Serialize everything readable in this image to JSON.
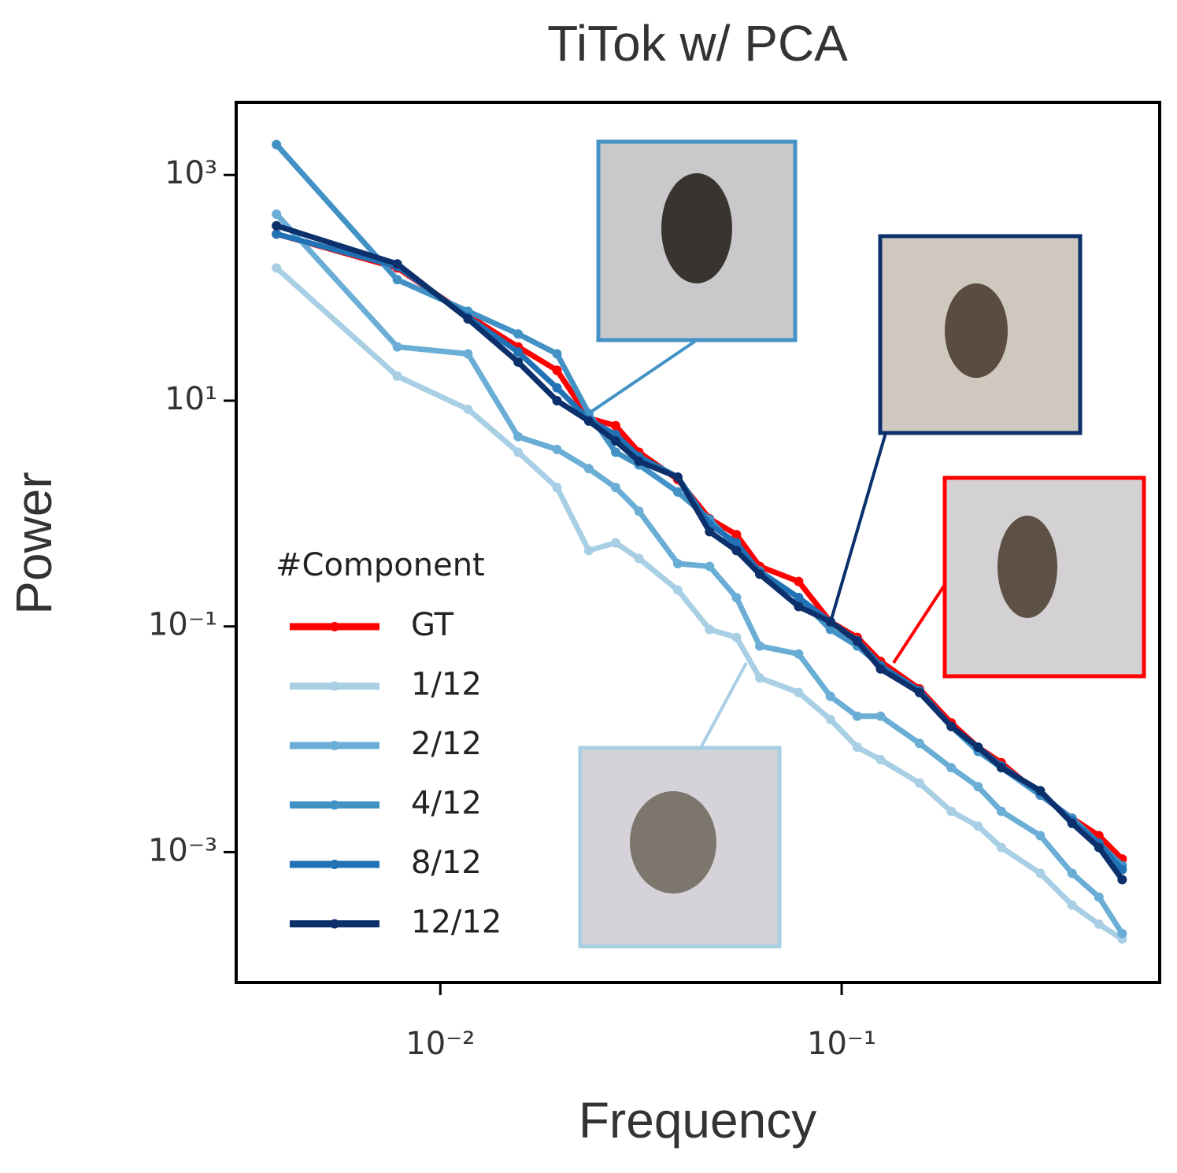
{
  "chart_data": {
    "type": "line",
    "title": "TiTok w/ PCA",
    "x_label": "Frequency",
    "y_label": "Power",
    "x_scale": "log",
    "y_scale": "log",
    "xlim": [
      0.0031,
      0.62
    ],
    "ylim": [
      7e-05,
      4400
    ],
    "xticks": [
      {
        "value": 0.01,
        "label": "10⁻²"
      },
      {
        "value": 0.1,
        "label": "10⁻¹"
      }
    ],
    "yticks": [
      {
        "value": 1000,
        "label": "10³"
      },
      {
        "value": 10,
        "label": "10¹"
      },
      {
        "value": 0.1,
        "label": "10⁻¹"
      },
      {
        "value": 0.001,
        "label": "10⁻³"
      }
    ],
    "legend": "lower left",
    "legend_title": "#Component",
    "x": [
      0.00390625,
      0.0078125,
      0.01171875,
      0.015625,
      0.01953125,
      0.0234375,
      0.02734375,
      0.03125,
      0.0390625,
      0.046875,
      0.0546875,
      0.0625,
      0.078125,
      0.09375,
      0.109375,
      0.125,
      0.15625,
      0.1875,
      0.21875,
      0.25,
      0.3125,
      0.375,
      0.4375,
      0.5
    ],
    "series": [
      {
        "name": "GT",
        "color": "#ff0000",
        "values": [
          300,
          150,
          57,
          30,
          18.6,
          7,
          6,
          3.5,
          2.0,
          0.9,
          0.65,
          0.34,
          0.25,
          0.11,
          0.08,
          0.049,
          0.028,
          0.014,
          0.0085,
          0.0062,
          0.0032,
          0.002,
          0.0014,
          0.00087
        ]
      },
      {
        "name": "1/12",
        "color": "#a9cfe5",
        "values": [
          150,
          16.5,
          8.4,
          3.5,
          1.7,
          0.47,
          0.55,
          0.4,
          0.21,
          0.094,
          0.08,
          0.035,
          0.026,
          0.015,
          0.0085,
          0.0066,
          0.0041,
          0.0023,
          0.0017,
          0.0011,
          0.00065,
          0.00034,
          0.00023,
          0.00017
        ]
      },
      {
        "name": "2/12",
        "color": "#6aaed6",
        "values": [
          450,
          30,
          26,
          4.8,
          3.7,
          2.5,
          1.7,
          1.05,
          0.36,
          0.34,
          0.18,
          0.067,
          0.057,
          0.024,
          0.016,
          0.016,
          0.0092,
          0.0056,
          0.0038,
          0.0023,
          0.0014,
          0.00065,
          0.0004,
          0.00019
        ]
      },
      {
        "name": "4/12",
        "color": "#4292c6",
        "values": [
          1860,
          118,
          62,
          39,
          26,
          7.7,
          3.5,
          2.7,
          1.55,
          0.89,
          0.5,
          0.31,
          0.18,
          0.094,
          0.067,
          0.045,
          0.026,
          0.013,
          0.0078,
          0.0056,
          0.0032,
          0.002,
          0.0012,
          0.00076
        ]
      },
      {
        "name": "8/12",
        "color": "#2171b5",
        "values": [
          300,
          155,
          55,
          27,
          13,
          6.8,
          5,
          3.2,
          2.1,
          0.8,
          0.55,
          0.3,
          0.18,
          0.11,
          0.075,
          0.045,
          0.027,
          0.013,
          0.0085,
          0.0058,
          0.0034,
          0.0019,
          0.0012,
          0.0007
        ]
      },
      {
        "name": "12/12",
        "color": "#0b306b",
        "values": [
          355,
          163,
          53,
          22,
          10,
          6.6,
          4.4,
          2.9,
          2.1,
          0.69,
          0.47,
          0.29,
          0.15,
          0.11,
          0.074,
          0.042,
          0.026,
          0.013,
          0.0085,
          0.0056,
          0.0035,
          0.0018,
          0.0011,
          0.00057
        ]
      }
    ]
  }
}
